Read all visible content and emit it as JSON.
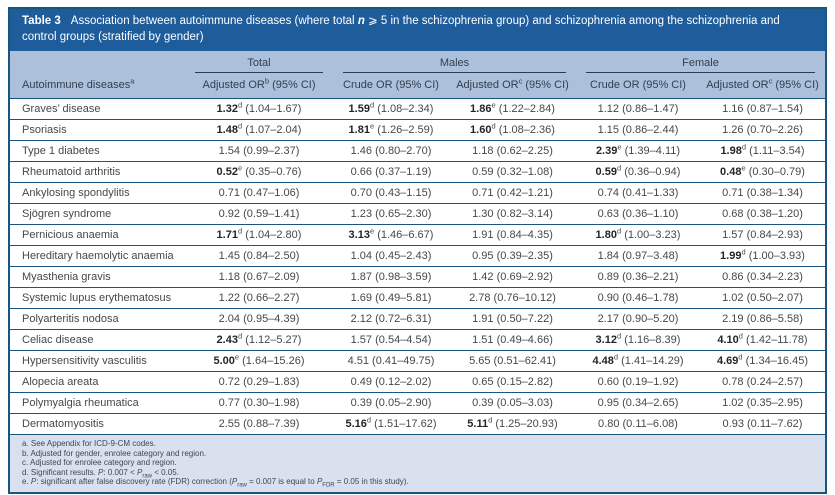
{
  "table": {
    "label": "Table 3",
    "title_pre": "Association between autoimmune diseases (where total ",
    "title_n": "n",
    "title_post": " ⩾ 5 in the schizophrenia group) and schizophrenia among the schizophrenia and control groups (stratified by gender)",
    "groups": [
      {
        "label": "Total",
        "span": 1
      },
      {
        "label": "Males",
        "span": 2
      },
      {
        "label": "Female",
        "span": 2
      }
    ],
    "columns": [
      {
        "pre": "Autoimmune diseases",
        "sup": "a",
        "post": ""
      },
      {
        "pre": "Adjusted OR",
        "sup": "b",
        "post": " (95% CI)"
      },
      {
        "pre": "Crude OR (95% CI)",
        "sup": "",
        "post": ""
      },
      {
        "pre": "Adjusted OR",
        "sup": "c",
        "post": " (95% CI)"
      },
      {
        "pre": "Crude OR (95% CI)",
        "sup": "",
        "post": ""
      },
      {
        "pre": "Adjusted OR",
        "sup": "c",
        "post": " (95% CI)"
      }
    ],
    "rows": [
      {
        "disease": "Graves’ disease",
        "cells": [
          {
            "v": "1.32",
            "s": "d",
            "ci": "(1.04–1.67)",
            "b": true
          },
          {
            "v": "1.59",
            "s": "d",
            "ci": "(1.08–2.34)",
            "b": true
          },
          {
            "v": "1.86",
            "s": "e",
            "ci": "(1.22–2.84)",
            "b": true
          },
          {
            "v": "1.12",
            "s": "",
            "ci": "(0.86–1.47)",
            "b": false
          },
          {
            "v": "1.16",
            "s": "",
            "ci": "(0.87–1.54)",
            "b": false
          }
        ]
      },
      {
        "disease": "Psoriasis",
        "cells": [
          {
            "v": "1.48",
            "s": "d",
            "ci": "(1.07–2.04)",
            "b": true
          },
          {
            "v": "1.81",
            "s": "e",
            "ci": "(1.26–2.59)",
            "b": true
          },
          {
            "v": "1.60",
            "s": "d",
            "ci": "(1.08–2.36)",
            "b": true
          },
          {
            "v": "1.15",
            "s": "",
            "ci": "(0.86–2.44)",
            "b": false
          },
          {
            "v": "1.26",
            "s": "",
            "ci": "(0.70–2.26)",
            "b": false
          }
        ]
      },
      {
        "disease": "Type 1 diabetes",
        "cells": [
          {
            "v": "1.54",
            "s": "",
            "ci": "(0.99–2.37)",
            "b": false
          },
          {
            "v": "1.46",
            "s": "",
            "ci": "(0.80–2.70)",
            "b": false
          },
          {
            "v": "1.18",
            "s": "",
            "ci": "(0.62–2.25)",
            "b": false
          },
          {
            "v": "2.39",
            "s": "e",
            "ci": "(1.39–4.11)",
            "b": true
          },
          {
            "v": "1.98",
            "s": "d",
            "ci": "(1.11–3.54)",
            "b": true
          }
        ]
      },
      {
        "disease": "Rheumatoid arthritis",
        "cells": [
          {
            "v": "0.52",
            "s": "e",
            "ci": "(0.35–0.76)",
            "b": true
          },
          {
            "v": "0.66",
            "s": "",
            "ci": "(0.37–1.19)",
            "b": false
          },
          {
            "v": "0.59",
            "s": "",
            "ci": "(0.32–1.08)",
            "b": false
          },
          {
            "v": "0.59",
            "s": "d",
            "ci": "(0.36–0.94)",
            "b": true
          },
          {
            "v": "0.48",
            "s": "e",
            "ci": "(0.30–0.79)",
            "b": true
          }
        ]
      },
      {
        "disease": "Ankylosing spondylitis",
        "cells": [
          {
            "v": "0.71",
            "s": "",
            "ci": "(0.47–1.06)",
            "b": false
          },
          {
            "v": "0.70",
            "s": "",
            "ci": "(0.43–1.15)",
            "b": false
          },
          {
            "v": "0.71",
            "s": "",
            "ci": "(0.42–1.21)",
            "b": false
          },
          {
            "v": "0.74",
            "s": "",
            "ci": "(0.41–1.33)",
            "b": false
          },
          {
            "v": "0.71",
            "s": "",
            "ci": "(0.38–1.34)",
            "b": false
          }
        ]
      },
      {
        "disease": "Sjögren syndrome",
        "cells": [
          {
            "v": "0.92",
            "s": "",
            "ci": "(0.59–1.41)",
            "b": false
          },
          {
            "v": "1.23",
            "s": "",
            "ci": "(0.65–2.30)",
            "b": false
          },
          {
            "v": "1.30",
            "s": "",
            "ci": "(0.82–3.14)",
            "b": false
          },
          {
            "v": "0.63",
            "s": "",
            "ci": "(0.36–1.10)",
            "b": false
          },
          {
            "v": "0.68",
            "s": "",
            "ci": "(0.38–1.20)",
            "b": false
          }
        ]
      },
      {
        "disease": "Pernicious anaemia",
        "cells": [
          {
            "v": "1.71",
            "s": "d",
            "ci": "(1.04–2.80)",
            "b": true
          },
          {
            "v": "3.13",
            "s": "e",
            "ci": "(1.46–6.67)",
            "b": true
          },
          {
            "v": "1.91",
            "s": "",
            "ci": "(0.84–4.35)",
            "b": false
          },
          {
            "v": "1.80",
            "s": "d",
            "ci": "(1.00–3.23)",
            "b": true
          },
          {
            "v": "1.57",
            "s": "",
            "ci": "(0.84–2.93)",
            "b": false
          }
        ]
      },
      {
        "disease": "Hereditary haemolytic anaemia",
        "cells": [
          {
            "v": "1.45",
            "s": "",
            "ci": "(0.84–2.50)",
            "b": false
          },
          {
            "v": "1.04",
            "s": "",
            "ci": "(0.45–2.43)",
            "b": false
          },
          {
            "v": "0.95",
            "s": "",
            "ci": "(0.39–2.35)",
            "b": false
          },
          {
            "v": "1.84",
            "s": "",
            "ci": "(0.97–3.48)",
            "b": false
          },
          {
            "v": "1.99",
            "s": "d",
            "ci": "(1.00–3.93)",
            "b": true
          }
        ]
      },
      {
        "disease": "Myasthenia gravis",
        "cells": [
          {
            "v": "1.18",
            "s": "",
            "ci": "(0.67–2.09)",
            "b": false
          },
          {
            "v": "1.87",
            "s": "",
            "ci": "(0.98–3.59)",
            "b": false
          },
          {
            "v": "1.42",
            "s": "",
            "ci": "(0.69–2.92)",
            "b": false
          },
          {
            "v": "0.89",
            "s": "",
            "ci": "(0.36–2.21)",
            "b": false
          },
          {
            "v": "0.86",
            "s": "",
            "ci": "(0.34–2.23)",
            "b": false
          }
        ]
      },
      {
        "disease": "Systemic lupus erythematosus",
        "cells": [
          {
            "v": "1.22",
            "s": "",
            "ci": "(0.66–2.27)",
            "b": false
          },
          {
            "v": "1.69",
            "s": "",
            "ci": "(0.49–5.81)",
            "b": false
          },
          {
            "v": "2.78",
            "s": "",
            "ci": "(0.76–10.12)",
            "b": false
          },
          {
            "v": "0.90",
            "s": "",
            "ci": "(0.46–1.78)",
            "b": false
          },
          {
            "v": "1.02",
            "s": "",
            "ci": "(0.50–2.07)",
            "b": false
          }
        ]
      },
      {
        "disease": "Polyarteritis nodosa",
        "cells": [
          {
            "v": "2.04",
            "s": "",
            "ci": "(0.95–4.39)",
            "b": false
          },
          {
            "v": "2.12",
            "s": "",
            "ci": "(0.72–6.31)",
            "b": false
          },
          {
            "v": "1.91",
            "s": "",
            "ci": "(0.50–7.22)",
            "b": false
          },
          {
            "v": "2.17",
            "s": "",
            "ci": "(0.90–5.20)",
            "b": false
          },
          {
            "v": "2.19",
            "s": "",
            "ci": "(0.86–5.58)",
            "b": false
          }
        ]
      },
      {
        "disease": "Celiac disease",
        "cells": [
          {
            "v": "2.43",
            "s": "d",
            "ci": "(1.12–5.27)",
            "b": true
          },
          {
            "v": "1.57",
            "s": "",
            "ci": "(0.54–4.54)",
            "b": false
          },
          {
            "v": "1.51",
            "s": "",
            "ci": "(0.49–4.66)",
            "b": false
          },
          {
            "v": "3.12",
            "s": "d",
            "ci": "(1.16–8.39)",
            "b": true
          },
          {
            "v": "4.10",
            "s": "d",
            "ci": "(1.42–11.78)",
            "b": true
          }
        ]
      },
      {
        "disease": "Hypersensitivity vasculitis",
        "cells": [
          {
            "v": "5.00",
            "s": "e",
            "ci": "(1.64–15.26)",
            "b": true
          },
          {
            "v": "4.51",
            "s": "",
            "ci": "(0.41–49.75)",
            "b": false
          },
          {
            "v": "5.65",
            "s": "",
            "ci": "(0.51–62.41)",
            "b": false
          },
          {
            "v": "4.48",
            "s": "d",
            "ci": "(1.41–14.29)",
            "b": true
          },
          {
            "v": "4.69",
            "s": "d",
            "ci": "(1.34–16.45)",
            "b": true
          }
        ]
      },
      {
        "disease": "Alopecia areata",
        "cells": [
          {
            "v": "0.72",
            "s": "",
            "ci": "(0.29–1.83)",
            "b": false
          },
          {
            "v": "0.49",
            "s": "",
            "ci": "(0.12–2.02)",
            "b": false
          },
          {
            "v": "0.65",
            "s": "",
            "ci": "(0.15–2.82)",
            "b": false
          },
          {
            "v": "0.60",
            "s": "",
            "ci": "(0.19–1.92)",
            "b": false
          },
          {
            "v": "0.78",
            "s": "",
            "ci": "(0.24–2.57)",
            "b": false
          }
        ]
      },
      {
        "disease": "Polymyalgia rheumatica",
        "cells": [
          {
            "v": "0.77",
            "s": "",
            "ci": "(0.30–1.98)",
            "b": false
          },
          {
            "v": "0.39",
            "s": "",
            "ci": "(0.05–2.90)",
            "b": false
          },
          {
            "v": "0.39",
            "s": "",
            "ci": "(0.05–3.03)",
            "b": false
          },
          {
            "v": "0.95",
            "s": "",
            "ci": "(0.34–2.65)",
            "b": false
          },
          {
            "v": "1.02",
            "s": "",
            "ci": "(0.35–2.95)",
            "b": false
          }
        ]
      },
      {
        "disease": "Dermatomyositis",
        "cells": [
          {
            "v": "2.55",
            "s": "",
            "ci": "(0.88–7.39)",
            "b": false
          },
          {
            "v": "5.16",
            "s": "d",
            "ci": "(1.51–17.62)",
            "b": true
          },
          {
            "v": "5.11",
            "s": "d",
            "ci": "(1.25–20.93)",
            "b": true
          },
          {
            "v": "0.80",
            "s": "",
            "ci": "(0.11–6.08)",
            "b": false
          },
          {
            "v": "0.93",
            "s": "",
            "ci": "(0.11–7.62)",
            "b": false
          }
        ]
      }
    ],
    "footnotes": [
      [
        {
          "t": "a. See Appendix for ICD-9-CM codes."
        }
      ],
      [
        {
          "t": "b. Adjusted for gender, enrolee category and region."
        }
      ],
      [
        {
          "t": "c. Adjusted for enrolee category and region."
        }
      ],
      [
        {
          "t": "d. Significant results. "
        },
        {
          "t": "P",
          "i": true
        },
        {
          "t": ": 0.007 < "
        },
        {
          "t": "P",
          "i": true
        },
        {
          "t": "raw",
          "sub": true
        },
        {
          "t": " < 0.05."
        }
      ],
      [
        {
          "t": "e. "
        },
        {
          "t": "P",
          "i": true
        },
        {
          "t": ": significant after false discovery rate (FDR) correction ("
        },
        {
          "t": "P",
          "i": true
        },
        {
          "t": "raw",
          "sub": true
        },
        {
          "t": " = 0.007 is equal to "
        },
        {
          "t": "P",
          "i": true
        },
        {
          "t": "FDR",
          "sub": true
        },
        {
          "t": " = 0.05 in this study)."
        }
      ]
    ],
    "colors": {
      "title_bar": "#1E5C9B",
      "header_band": "#ACC0DB",
      "footnote_band": "#D9E1EF",
      "rule": "#1A5580"
    }
  }
}
